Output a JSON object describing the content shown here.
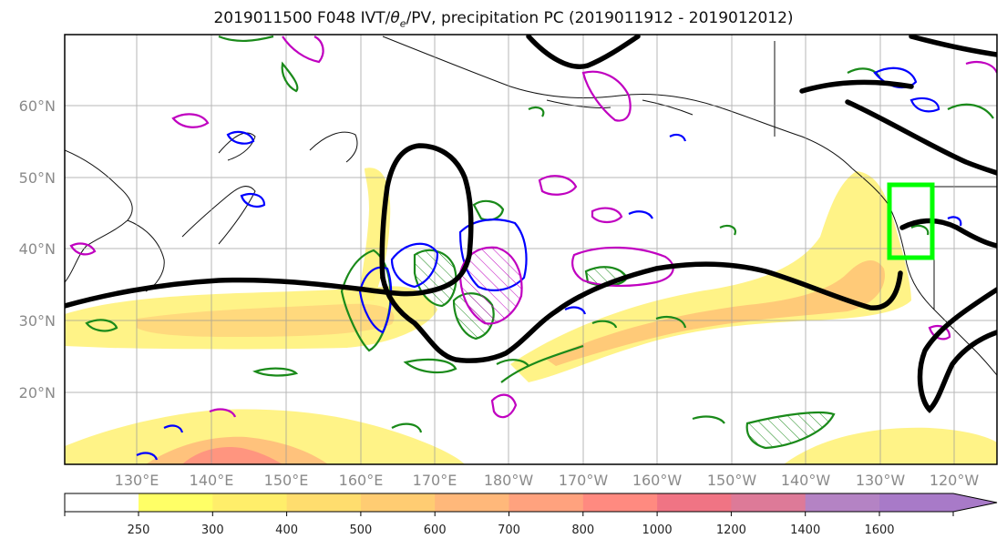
{
  "title": {
    "run": "2019011500 F048 IVT/",
    "theta": "θ",
    "theta_sub": "e",
    "rest": "/PV, precipitation PC (2019011912 - 2019012012)"
  },
  "axes": {
    "lat_labels": [
      "60°N",
      "50°N",
      "40°N",
      "30°N",
      "20°N"
    ],
    "lon_labels": [
      "130°E",
      "140°E",
      "150°E",
      "160°E",
      "170°E",
      "180°W",
      "170°W",
      "160°W",
      "150°W",
      "140°W",
      "130°W",
      "120°W"
    ]
  },
  "colorbar": {
    "ticks": [
      "250",
      "300",
      "400",
      "500",
      "600",
      "700",
      "800",
      "1000",
      "1200",
      "1400",
      "1600"
    ],
    "colors": [
      "#ffff66",
      "#ffee6a",
      "#ffdd6e",
      "#ffcc72",
      "#ffb87a",
      "#ffa27e",
      "#ff8a80",
      "#f07484",
      "#dd7a98",
      "#b483c4",
      "#a87ac8"
    ]
  },
  "colors": {
    "ivt_outline": "#f5c842",
    "theta_contour": "#000000",
    "pv_green": "#1a8a1a",
    "pv_blue": "#0000ff",
    "pv_magenta": "#c000c0",
    "target_box": "#00ff00"
  }
}
